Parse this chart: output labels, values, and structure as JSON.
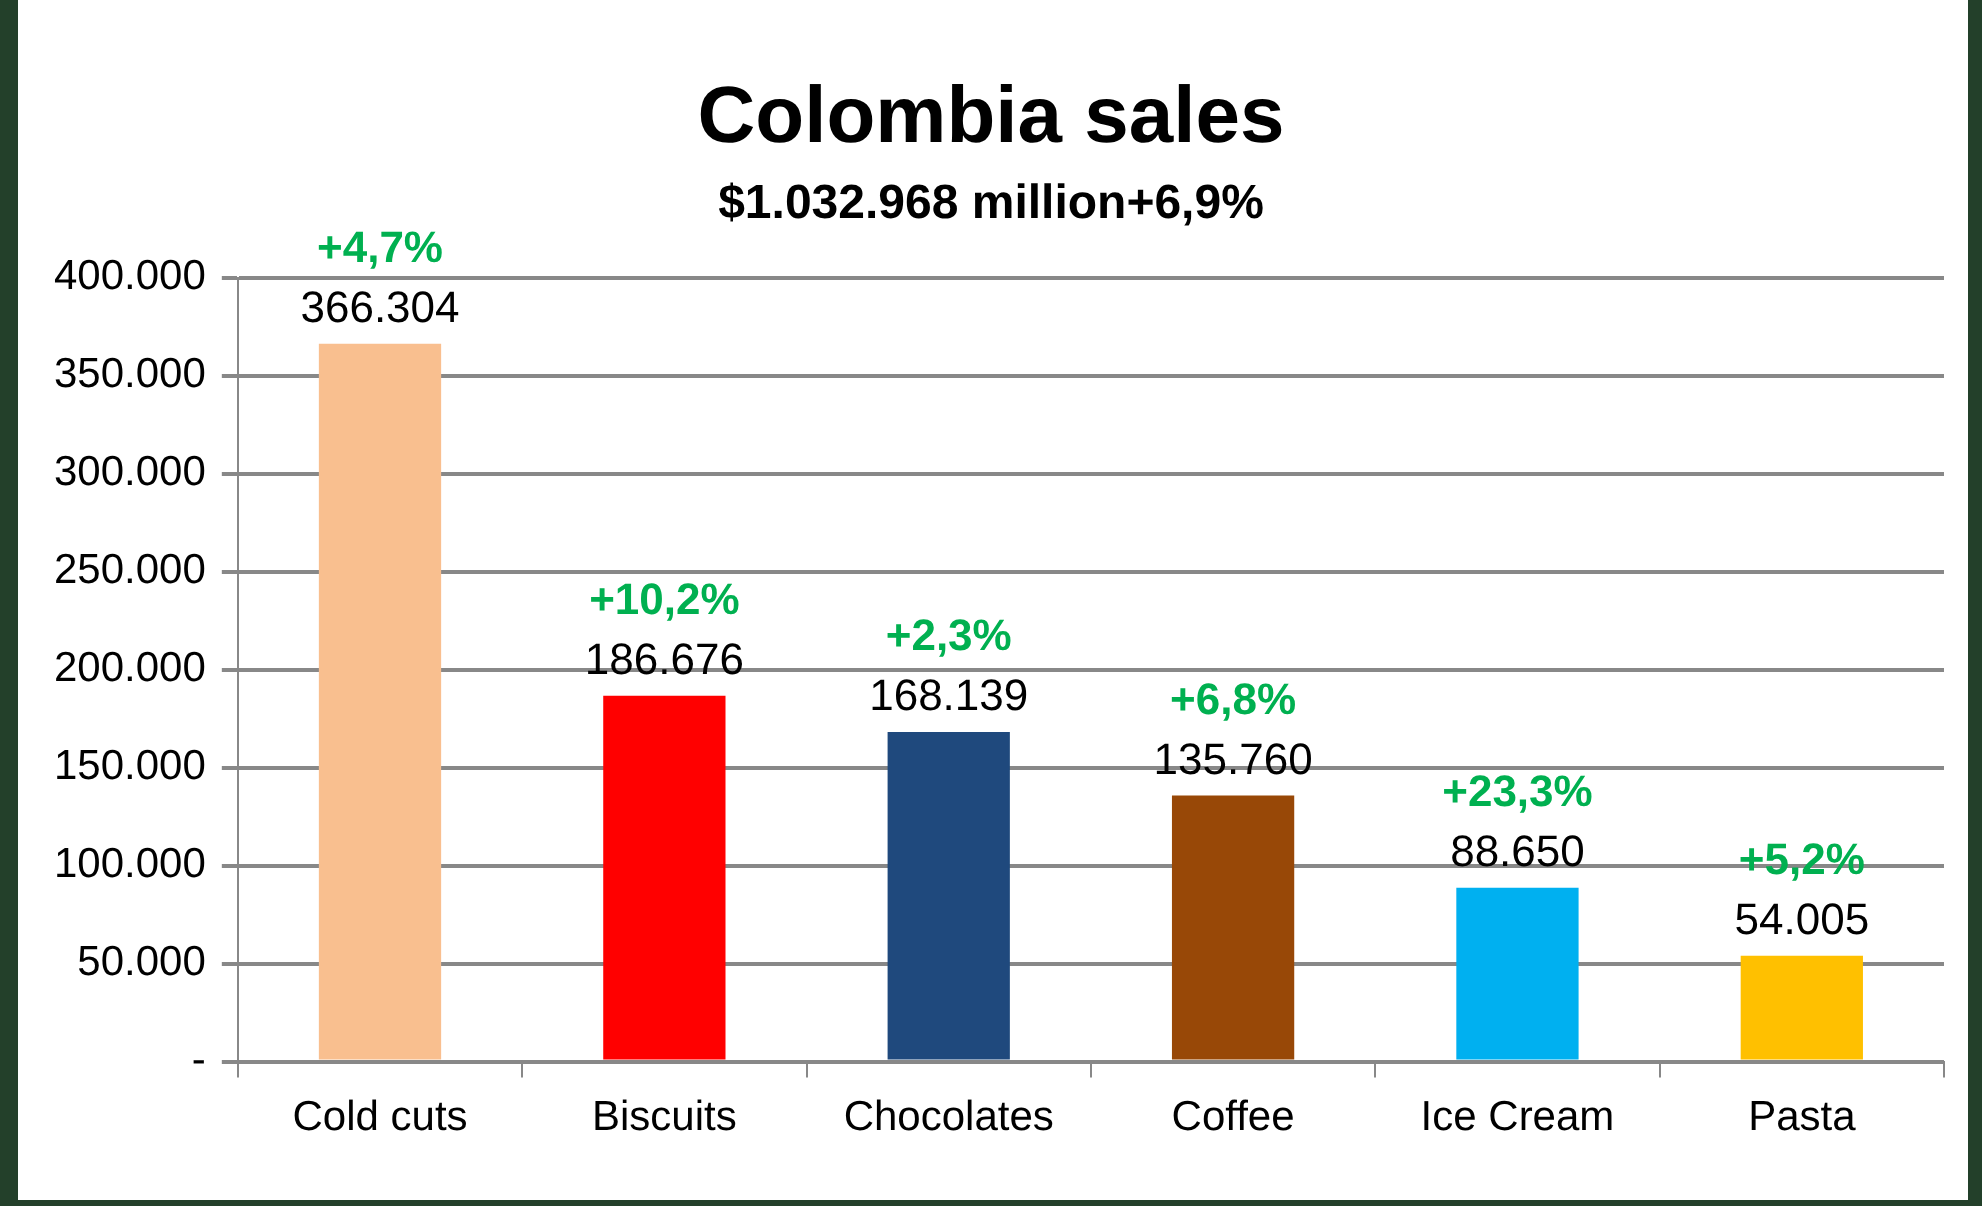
{
  "chart_data": {
    "type": "bar",
    "title": "Colombia sales",
    "subtitle": "$1.032.968 million+6,9%",
    "categories": [
      "Cold cuts",
      "Biscuits",
      "Chocolates",
      "Coffee",
      "Ice Cream",
      "Pasta"
    ],
    "values": [
      366304,
      186676,
      168139,
      135760,
      88650,
      54005
    ],
    "colors": [
      "#f9bf8f",
      "#ff0000",
      "#1f497d",
      "#984807",
      "#00b0f0",
      "#ffc000"
    ],
    "value_labels": [
      "366.304",
      "186.676",
      "168.139",
      "135.760",
      "88.650",
      "54.005"
    ],
    "annotations": [
      {
        "text": "+4,7%",
        "x": "Cold cuts",
        "y": 366304
      },
      {
        "text": "+10,2%",
        "x": "Biscuits",
        "y": 186676
      },
      {
        "text": "+2,3%",
        "x": "Chocolates",
        "y": 168139
      },
      {
        "text": "+6,8%",
        "x": "Coffee",
        "y": 135760
      },
      {
        "text": "+23,3%",
        "x": "Ice Cream",
        "y": 88650
      },
      {
        "text": "+5,2%",
        "x": "Pasta",
        "y": 54005
      }
    ],
    "ylim": [
      0,
      400000
    ],
    "yticks": [
      {
        "value": 0,
        "label": "-"
      },
      {
        "value": 50000,
        "label": "50.000"
      },
      {
        "value": 100000,
        "label": "100.000"
      },
      {
        "value": 150000,
        "label": "150.000"
      },
      {
        "value": 200000,
        "label": "200.000"
      },
      {
        "value": 250000,
        "label": "250.000"
      },
      {
        "value": 300000,
        "label": "300.000"
      },
      {
        "value": 350000,
        "label": "350.000"
      },
      {
        "value": 400000,
        "label": "400.000"
      }
    ],
    "grid": "y",
    "legend": false
  }
}
